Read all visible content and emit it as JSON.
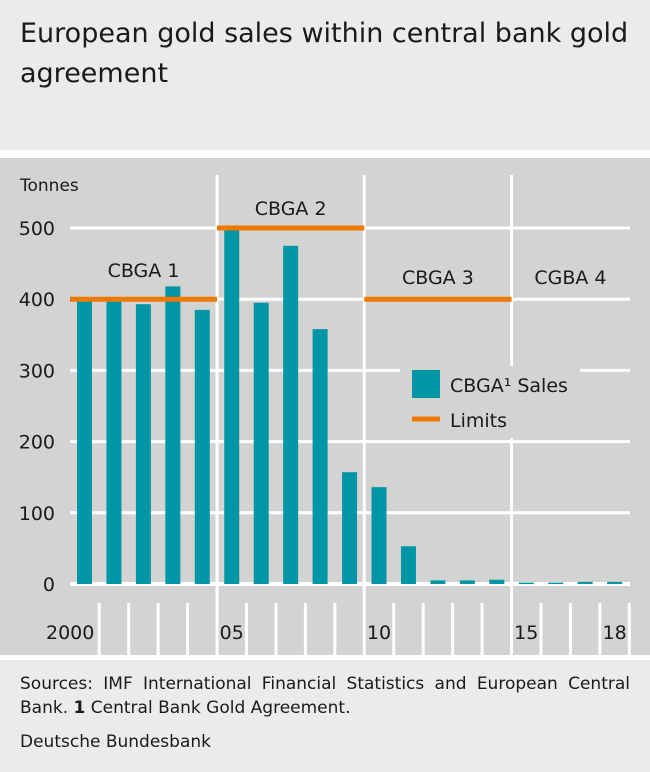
{
  "title": "European gold sales within central bank gold agreement",
  "chart_data": {
    "type": "bar",
    "ylabel": "Tonnes",
    "ylim": [
      0,
      500
    ],
    "yticks": [
      "0",
      "100",
      "200",
      "300",
      "400",
      "500"
    ],
    "x": [
      2000,
      2001,
      2002,
      2003,
      2004,
      2005,
      2006,
      2007,
      2008,
      2009,
      2010,
      2011,
      2012,
      2013,
      2014,
      2015,
      2016,
      2017,
      2018
    ],
    "xtick_labels": [
      {
        "year": 2000,
        "label": "2000"
      },
      {
        "year": 2005,
        "label": "05"
      },
      {
        "year": 2010,
        "label": "10"
      },
      {
        "year": 2015,
        "label": "15"
      },
      {
        "year": 2018,
        "label": "18"
      }
    ],
    "series": [
      {
        "name": "CBGA¹ Sales",
        "type": "bar",
        "color": "#0096a6",
        "values": [
          400,
          403,
          393,
          418,
          385,
          497,
          395,
          475,
          358,
          157,
          136,
          53,
          5,
          5,
          6,
          2,
          2,
          3,
          3
        ]
      }
    ],
    "limits": {
      "name": "Limits",
      "color": "#ef7800",
      "segments": [
        {
          "label": "CBGA 1",
          "from": 2000,
          "to": 2004,
          "value": 400
        },
        {
          "label": "CBGA 2",
          "from": 2005,
          "to": 2009,
          "value": 500
        },
        {
          "label": "CBGA 3",
          "from": 2010,
          "to": 2014,
          "value": 400
        },
        {
          "label": "CGBA 4",
          "from": 2015,
          "to": 2018,
          "value": null
        }
      ]
    },
    "legend_position": "center-right",
    "grid": true
  },
  "footer": {
    "sources": "Sources: IMF International Financial Statistics and European Central Bank.",
    "footnote_mark": "1",
    "footnote": "Central Bank Gold Agreement.",
    "organization": "Deutsche Bundesbank"
  }
}
